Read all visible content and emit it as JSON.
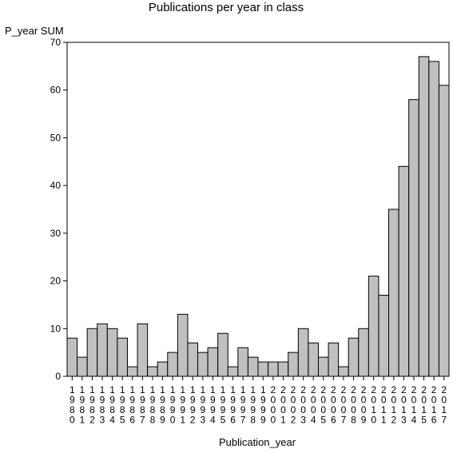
{
  "chart_data": {
    "type": "bar",
    "title": "Publications per year in class",
    "xlabel": "Publication_year",
    "ylabel": "P_year SUM",
    "ylim": [
      0,
      70
    ],
    "yticks": [
      0,
      10,
      20,
      30,
      40,
      50,
      60,
      70
    ],
    "grid": false,
    "bar_color": "#c0c0c0",
    "categories": [
      "1980",
      "1981",
      "1982",
      "1983",
      "1984",
      "1985",
      "1986",
      "1987",
      "1988",
      "1989",
      "1990",
      "1991",
      "1992",
      "1993",
      "1994",
      "1995",
      "1996",
      "1997",
      "1998",
      "1999",
      "2000",
      "2001",
      "2002",
      "2003",
      "2004",
      "2005",
      "2006",
      "2007",
      "2008",
      "2009",
      "2010",
      "2011",
      "2012",
      "2013",
      "2014",
      "2015",
      "2016",
      "2017"
    ],
    "values": [
      8,
      4,
      10,
      11,
      10,
      8,
      2,
      11,
      2,
      3,
      5,
      13,
      7,
      5,
      6,
      9,
      2,
      6,
      4,
      3,
      3,
      3,
      5,
      10,
      7,
      4,
      7,
      2,
      8,
      10,
      21,
      17,
      35,
      44,
      58,
      67,
      66,
      61
    ]
  }
}
